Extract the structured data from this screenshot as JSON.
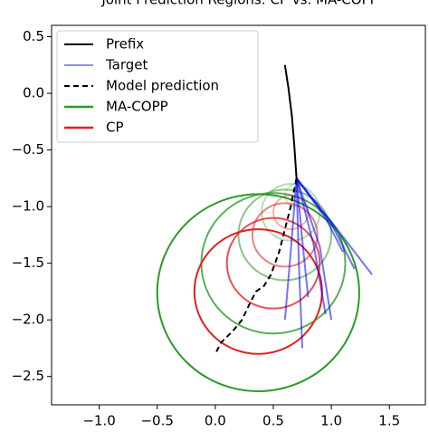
{
  "chart_data": {
    "type": "trajectory",
    "title": "Joint Prediction Regions: CP vs. MA-COPP",
    "xlim": [
      -1.41,
      1.81
    ],
    "ylim": [
      -2.75,
      0.6
    ],
    "xticks": [
      {
        "value": -1,
        "label": "−1.0"
      },
      {
        "value": -0.5,
        "label": "−0.5"
      },
      {
        "value": 0,
        "label": "0.0"
      },
      0.5,
      {
        "value": 1,
        "label": "1.0"
      },
      1.5
    ],
    "yticks": [
      0.5,
      {
        "value": 0,
        "label": "0.0"
      },
      {
        "value": -0.5,
        "label": "−0.5"
      },
      {
        "value": -1,
        "label": "−1.0"
      },
      {
        "value": -1.5,
        "label": "−1.5"
      },
      {
        "value": -2,
        "label": "−2.0"
      },
      {
        "value": -2.5,
        "label": "−2.5"
      }
    ],
    "legend": "upper left",
    "series": [
      {
        "name": "Prefix",
        "color": "#000000",
        "style": "solid",
        "lines": [
          {
            "x": [
              0.6,
              0.63,
              0.66,
              0.68,
              0.69,
              0.7
            ],
            "y": [
              0.25,
              0.05,
              -0.2,
              -0.45,
              -0.6,
              -0.75
            ]
          }
        ]
      },
      {
        "name": "Target",
        "color": "#0000ff",
        "style": "solid",
        "lines": [
          {
            "x": [
              0.7,
              0.72,
              0.75
            ],
            "y": [
              -0.75,
              -1.5,
              -2.25
            ]
          },
          {
            "x": [
              0.7,
              0.85,
              0.95
            ],
            "y": [
              -0.75,
              -1.35,
              -1.95
            ]
          },
          {
            "x": [
              0.7,
              0.9,
              1.0
            ],
            "y": [
              -0.75,
              -1.35,
              -2.0
            ]
          },
          {
            "x": [
              0.7,
              1.05,
              1.35
            ],
            "y": [
              -0.75,
              -1.2,
              -1.6
            ]
          },
          {
            "x": [
              0.7,
              1.0,
              1.2
            ],
            "y": [
              -0.75,
              -1.15,
              -1.55
            ]
          },
          {
            "x": [
              0.7,
              0.75,
              0.8
            ],
            "y": [
              -0.75,
              -1.3,
              -1.8
            ]
          },
          {
            "x": [
              0.7,
              0.65,
              0.6
            ],
            "y": [
              -0.75,
              -1.4,
              -2.0
            ]
          },
          {
            "x": [
              0.7,
              0.95,
              1.1
            ],
            "y": [
              -0.75,
              -1.1,
              -1.4
            ]
          }
        ]
      },
      {
        "name": "Model prediction",
        "color": "#000000",
        "style": "dashed",
        "lines": [
          {
            "x": [
              0.7,
              0.65,
              0.6,
              0.55,
              0.48,
              0.42,
              0.35,
              0.3,
              0.23,
              0.15,
              0.05,
              0.0
            ],
            "y": [
              -0.75,
              -1.0,
              -1.2,
              -1.4,
              -1.6,
              -1.7,
              -1.75,
              -1.85,
              -2.0,
              -2.1,
              -2.2,
              -2.3
            ]
          }
        ]
      },
      {
        "name": "MA-COPP",
        "color": "#2a9a2a",
        "style": "circle",
        "circles": [
          {
            "x": 0.37,
            "y": -1.76,
            "radius": 0.87
          },
          {
            "x": 0.5,
            "y": -1.5,
            "radius": 0.62
          },
          {
            "x": 0.6,
            "y": -1.25,
            "radius": 0.4
          },
          {
            "x": 0.65,
            "y": -1.05,
            "radius": 0.25
          },
          {
            "x": 0.7,
            "y": -0.9,
            "radius": 0.1
          }
        ]
      },
      {
        "name": "CP",
        "color": "#e02020",
        "style": "circle",
        "circles": [
          {
            "x": 0.37,
            "y": -1.75,
            "radius": 0.55
          },
          {
            "x": 0.5,
            "y": -1.5,
            "radius": 0.4
          },
          {
            "x": 0.6,
            "y": -1.25,
            "radius": 0.28
          },
          {
            "x": 0.65,
            "y": -1.05,
            "radius": 0.15
          }
        ]
      }
    ]
  }
}
